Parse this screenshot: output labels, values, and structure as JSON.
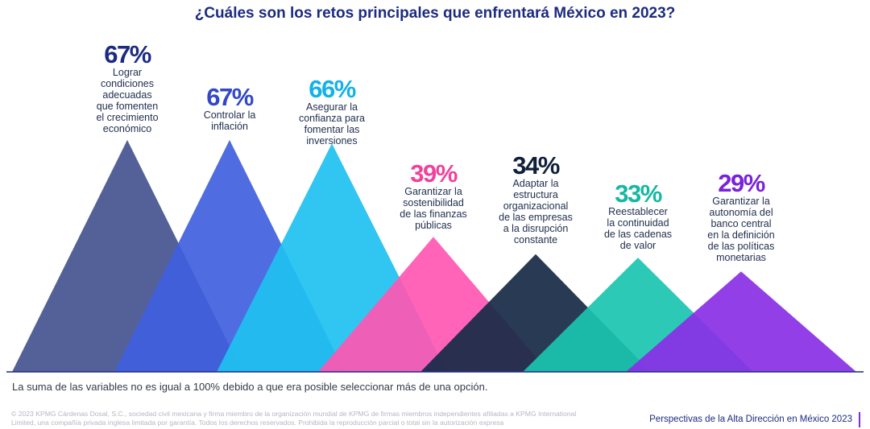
{
  "page": {
    "title": "¿Cuáles son los retos principales que enfrentará México en 2023?"
  },
  "chart_data": {
    "type": "area",
    "title": "¿Cuáles son los retos principales que enfrentará México en 2023?",
    "ylim": [
      0,
      100
    ],
    "unit": "%",
    "series": [
      {
        "name": "Lograr condiciones adecuadas que fomenten el crecimiento económico",
        "value": 67,
        "label": "67%",
        "lines": [
          "Lograr",
          "condiciones",
          "adecuadas",
          "que fomenten",
          "el crecimiento",
          "económico"
        ],
        "color": "#45548f",
        "value_color": "#1c2b80"
      },
      {
        "name": "Controlar la inflación",
        "value": 67,
        "label": "67%",
        "lines": [
          "Controlar la",
          "inflación"
        ],
        "color": "#4060de",
        "value_color": "#3148c8"
      },
      {
        "name": "Asegurar la confianza para fomentar las inversiones",
        "value": 66,
        "label": "66%",
        "lines": [
          "Asegurar la",
          "confianza para",
          "fomentar las",
          "inversiones"
        ],
        "color": "#1ec1f0",
        "value_color": "#12b2e8"
      },
      {
        "name": "Garantizar la sostenibilidad de las finanzas públicas",
        "value": 39,
        "label": "39%",
        "lines": [
          "Garantizar la",
          "sostenibilidad",
          "de las finanzas",
          "públicas"
        ],
        "color": "#ff57b2",
        "value_color": "#f0419d"
      },
      {
        "name": "Adaptar la estructura organizacional de las empresas a la disrupción constante",
        "value": 34,
        "label": "34%",
        "lines": [
          "Adaptar la",
          "estructura",
          "organizacional",
          "de las empresas",
          "a la disrupción",
          "constante"
        ],
        "color": "#172a45",
        "value_color": "#0f1f3a"
      },
      {
        "name": "Reestablecer la continuidad de las cadenas de valor",
        "value": 33,
        "label": "33%",
        "lines": [
          "Reestablecer",
          "la continuidad",
          "de las cadenas",
          "de valor"
        ],
        "color": "#1ac6b0",
        "value_color": "#16b8a3"
      },
      {
        "name": "Garantizar la autonomía del banco central en la definición de las políticas monetarias",
        "value": 29,
        "label": "29%",
        "lines": [
          "Garantizar la",
          "autonomía del",
          "banco central",
          "en la definición",
          "de las políticas",
          "monetarias"
        ],
        "color": "#8a2fe6",
        "value_color": "#7a22d8"
      }
    ]
  },
  "note": "La suma de las variables no es igual a 100% debido a que era posible seleccionar más de una opción.",
  "legal": "© 2023 KPMG Cárdenas Dosal, S.C., sociedad civil mexicana y firma miembro de la organización mundial de KPMG de firmas miembros independientes afiliadas a KPMG International Limited, una compañía privada inglesa limitada por garantía. Todos los derechos reservados. Prohibida la reproducción parcial o total sin la autorización expresa",
  "footer": {
    "title": "Perspectivas de la Alta Dirección en México 2023"
  }
}
